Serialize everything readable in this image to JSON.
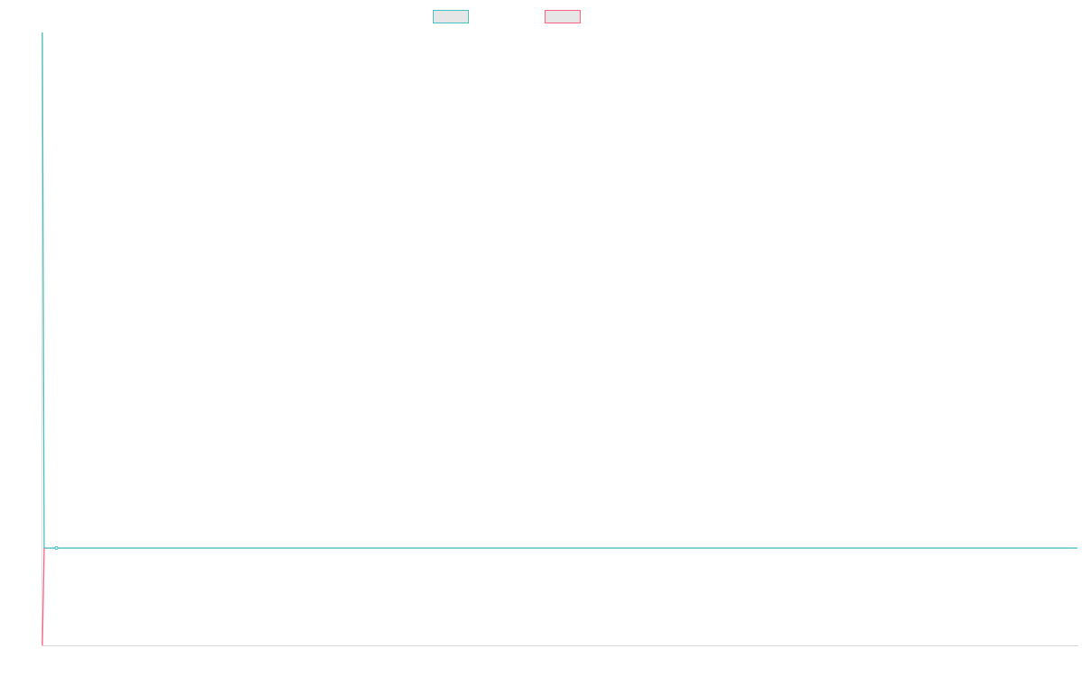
{
  "chart_data": {
    "type": "line",
    "title": "",
    "xlabel": "",
    "ylabel": "",
    "grid": false,
    "legend_position": "top",
    "x_range": [
      0,
      100
    ],
    "y_range": [
      -1,
      5.3
    ],
    "baseline": 0,
    "series": [
      {
        "color": "#4bc0c0",
        "x": [
          0,
          0.17,
          100
        ],
        "values": [
          5.3,
          0,
          0
        ],
        "point_x": [
          1.35
        ],
        "point_values": [
          0
        ]
      },
      {
        "color": "#ff6384",
        "x": [
          0,
          0.17
        ],
        "values": [
          -1,
          0
        ]
      }
    ]
  }
}
